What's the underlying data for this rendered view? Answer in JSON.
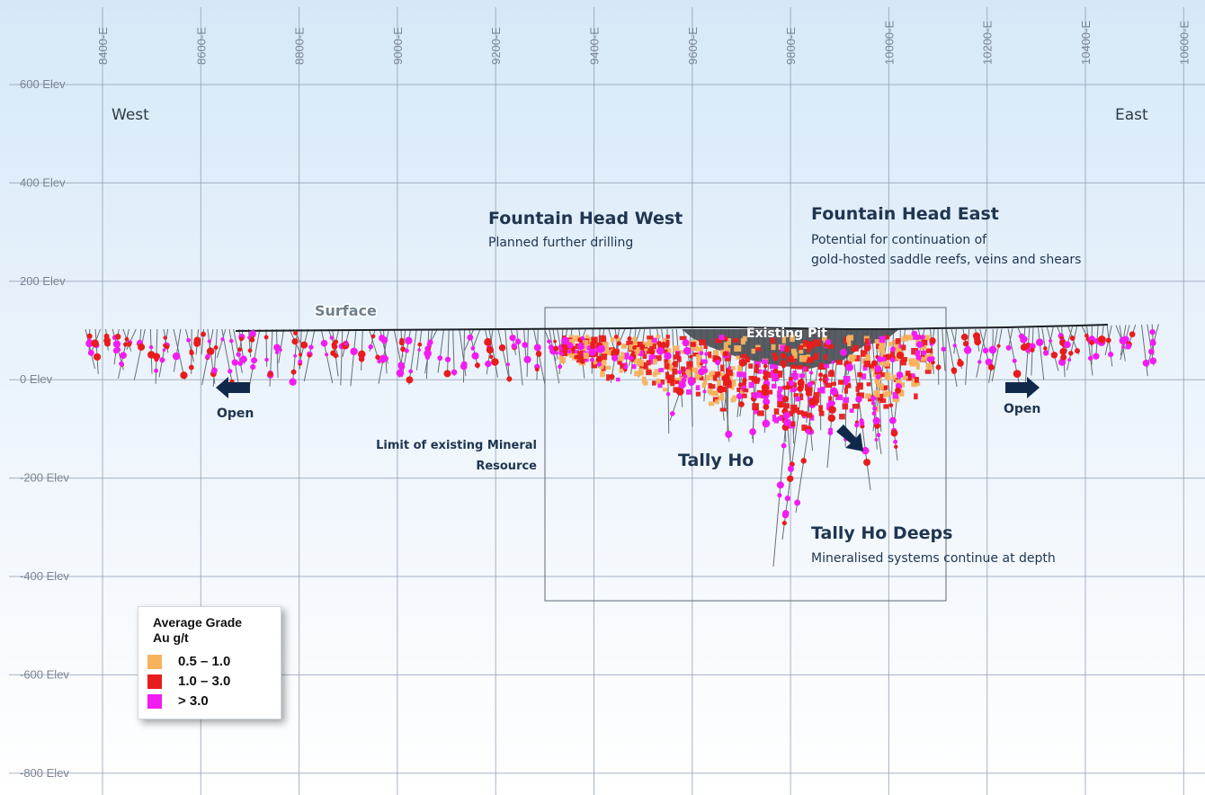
{
  "colors": {
    "bg_top": "#d9eaf8",
    "bg_bottom": "#ffffff",
    "grid": "#8a9bb0",
    "grade_low": "#f7b25d",
    "grade_mid": "#e81c1c",
    "grade_high": "#f21cf2",
    "headline": "#1f3550",
    "arrow": "#10294a"
  },
  "axes": {
    "easting_labels": [
      "8400-E",
      "8600-E",
      "8800-E",
      "9000-E",
      "9200-E",
      "9400-E",
      "9600-E",
      "9800-E",
      "10000-E",
      "10200-E",
      "10400-E",
      "10600-E"
    ],
    "elevation_labels": [
      "600 Elev",
      "400 Elev",
      "200 Elev",
      "0 Elev",
      "-200 Elev",
      "-400 Elev",
      "-600 Elev",
      "-800 Elev"
    ]
  },
  "annotations": {
    "west": "West",
    "east": "East",
    "surface": "Surface",
    "existing_pit": "Existing Pit",
    "open_left": "Open",
    "open_right": "Open",
    "limit_line1": "Limit of existing Mineral",
    "limit_line2": "Resource",
    "tally_ho": "Tally Ho",
    "fhw_title": "Fountain Head West",
    "fhw_sub": "Planned further drilling",
    "fhe_title": "Fountain Head East",
    "fhe_sub1": "Potential for continuation of",
    "fhe_sub2": "gold-hosted saddle reefs, veins and shears",
    "thd_title": "Tally Ho Deeps",
    "thd_sub": "Mineralised systems continue at depth"
  },
  "legend": {
    "title_line1": "Average Grade",
    "title_line2": "Au g/t",
    "items": [
      {
        "label": "0.5 – 1.0",
        "color": "#f7b25d"
      },
      {
        "label": "1.0 – 3.0",
        "color": "#e81c1c"
      },
      {
        "label": "> 3.0",
        "color": "#f21cf2"
      }
    ]
  }
}
